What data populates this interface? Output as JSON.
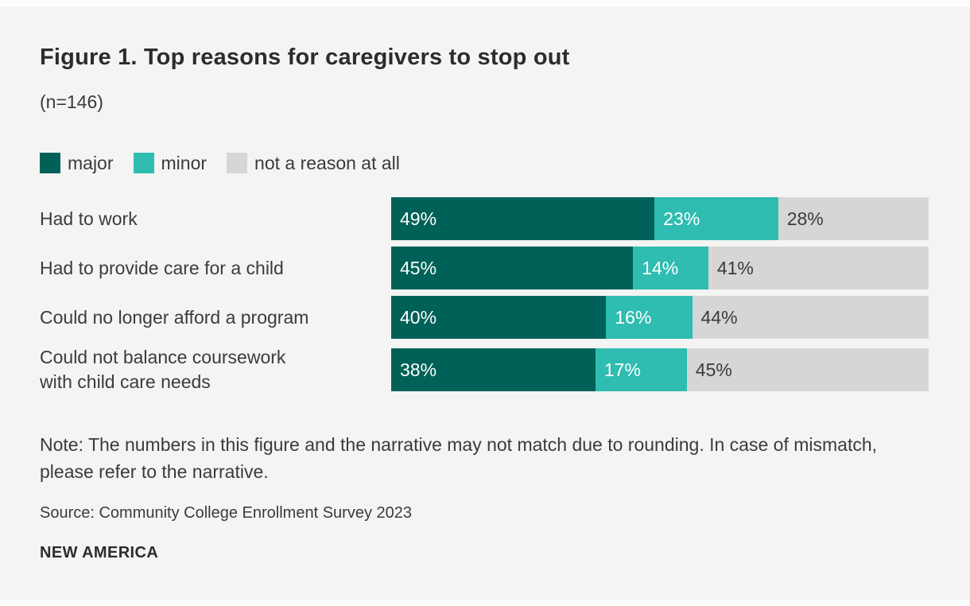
{
  "figure": {
    "title": "Figure 1. Top reasons for caregivers to stop out",
    "subtitle": "(n=146)",
    "note": "Note: The numbers in this figure and the narrative may not match due to rounding. In case of mismatch, please refer to the narrative.",
    "source": "Source: Community College Enrollment Survey 2023",
    "branding": "NEW AMERICA"
  },
  "colors": {
    "page": "#fdfdfd",
    "panel_background": "#f4f4f3",
    "major": "#006158",
    "minor": "#2fbcb1",
    "not_a_reason": "#d6d6d6",
    "text": "#3b3b3b",
    "title_text": "#2c2c2c",
    "value_on_color": "#ffffff"
  },
  "chart_data": {
    "type": "bar",
    "variant": "horizontal-stacked",
    "unit": "percent",
    "xlim": [
      0,
      100
    ],
    "grid": false,
    "legend_position": "top",
    "title": "Figure 1. Top reasons for caregivers to stop out",
    "subtitle": "(n=146)",
    "categories": [
      "Had to work",
      "Had to provide care for a child",
      "Could no longer afford a program",
      "Could not balance coursework\nwith child care needs"
    ],
    "series": [
      {
        "name": "major",
        "color": "#006158",
        "values": [
          49,
          45,
          40,
          38
        ]
      },
      {
        "name": "minor",
        "color": "#2fbcb1",
        "values": [
          23,
          14,
          16,
          17
        ]
      },
      {
        "name": "not a reason at all",
        "color": "#d6d6d6",
        "values": [
          28,
          41,
          44,
          45
        ]
      }
    ]
  }
}
